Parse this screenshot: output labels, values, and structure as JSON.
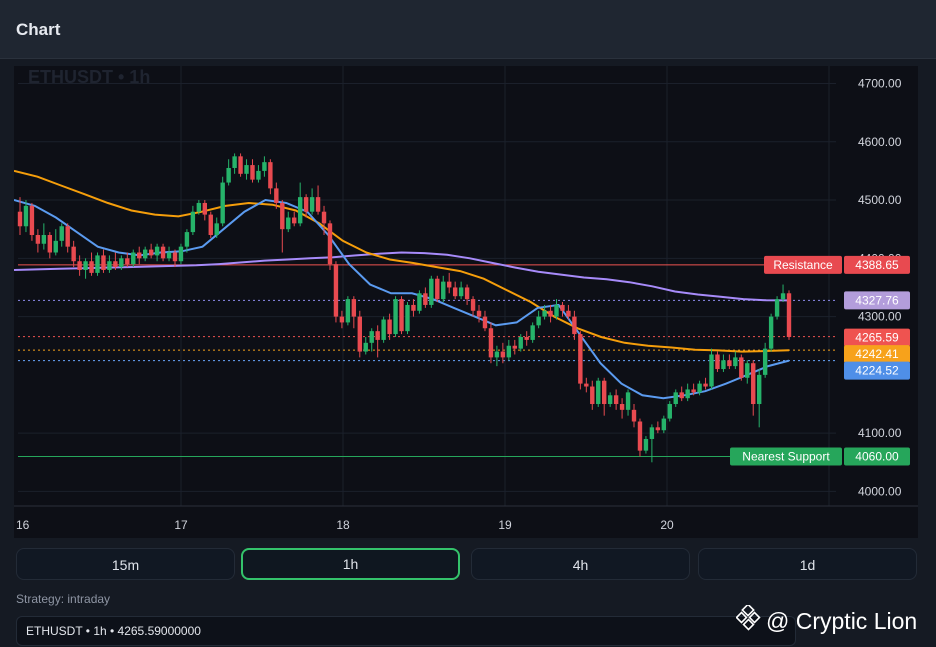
{
  "header": {
    "title": "Chart"
  },
  "symbol_watermark": "ETHUSDT • 1h",
  "chart_data": {
    "type": "candlestick",
    "symbol": "ETHUSDT",
    "interval": "1h",
    "ylim": [
      3975,
      4730
    ],
    "y_ticks": [
      {
        "v": 4700,
        "label": "4700.00"
      },
      {
        "v": 4600,
        "label": "4600.00"
      },
      {
        "v": 4500,
        "label": "4500.00"
      },
      {
        "v": 4400,
        "label": "4400.00"
      },
      {
        "v": 4300,
        "label": "4300.00"
      },
      {
        "v": 4100,
        "label": "4100.00"
      },
      {
        "v": 4000,
        "label": "4000.00"
      }
    ],
    "x_ticks": [
      "16",
      "17",
      "18",
      "19",
      "20"
    ],
    "levels": [
      {
        "name": "Resistance",
        "value": "4388.65",
        "color": "#ef5350",
        "style": "solid"
      },
      {
        "name": "Nearest Support",
        "value": "4060.00",
        "color": "#26a65b",
        "style": "solid"
      }
    ],
    "price_labels": [
      {
        "value": "4327.76",
        "color": "#b39ddb",
        "line": "#8e8cf0"
      },
      {
        "value": "4265.59",
        "color": "#ef5350",
        "line": "#ef5350"
      },
      {
        "value": "4242.41",
        "color": "#f7a21b",
        "line": "#f7a21b"
      },
      {
        "value": "4224.52",
        "color": "#4f8fe8",
        "line": "#6aa8ff"
      }
    ],
    "candles": [
      [
        4480,
        4455,
        4505,
        4440
      ],
      [
        4455,
        4490,
        4500,
        4445
      ],
      [
        4490,
        4440,
        4495,
        4430
      ],
      [
        4440,
        4425,
        4450,
        4410
      ],
      [
        4425,
        4440,
        4460,
        4415
      ],
      [
        4440,
        4410,
        4445,
        4400
      ],
      [
        4410,
        4430,
        4450,
        4405
      ],
      [
        4430,
        4455,
        4460,
        4420
      ],
      [
        4455,
        4420,
        4460,
        4410
      ],
      [
        4420,
        4395,
        4430,
        4385
      ],
      [
        4395,
        4380,
        4405,
        4370
      ],
      [
        4380,
        4395,
        4400,
        4365
      ],
      [
        4395,
        4375,
        4410,
        4370
      ],
      [
        4375,
        4405,
        4410,
        4370
      ],
      [
        4405,
        4380,
        4415,
        4375
      ],
      [
        4380,
        4395,
        4405,
        4375
      ],
      [
        4395,
        4385,
        4410,
        4380
      ],
      [
        4385,
        4400,
        4405,
        4380
      ],
      [
        4400,
        4390,
        4410,
        4385
      ],
      [
        4390,
        4410,
        4415,
        4385
      ],
      [
        4410,
        4400,
        4420,
        4390
      ],
      [
        4400,
        4415,
        4420,
        4395
      ],
      [
        4415,
        4405,
        4425,
        4400
      ],
      [
        4405,
        4420,
        4425,
        4395
      ],
      [
        4420,
        4400,
        4425,
        4395
      ],
      [
        4400,
        4410,
        4420,
        4395
      ],
      [
        4410,
        4395,
        4415,
        4385
      ],
      [
        4395,
        4420,
        4425,
        4390
      ],
      [
        4420,
        4445,
        4450,
        4410
      ],
      [
        4445,
        4480,
        4490,
        4440
      ],
      [
        4480,
        4495,
        4500,
        4475
      ],
      [
        4495,
        4475,
        4500,
        4465
      ],
      [
        4475,
        4440,
        4480,
        4435
      ],
      [
        4440,
        4460,
        4470,
        4435
      ],
      [
        4460,
        4530,
        4540,
        4455
      ],
      [
        4530,
        4555,
        4570,
        4525
      ],
      [
        4555,
        4575,
        4580,
        4545
      ],
      [
        4575,
        4545,
        4580,
        4540
      ],
      [
        4545,
        4560,
        4570,
        4535
      ],
      [
        4560,
        4535,
        4570,
        4530
      ],
      [
        4535,
        4550,
        4560,
        4530
      ],
      [
        4550,
        4565,
        4575,
        4540
      ],
      [
        4565,
        4520,
        4570,
        4510
      ],
      [
        4520,
        4495,
        4530,
        4485
      ],
      [
        4495,
        4450,
        4500,
        4410
      ],
      [
        4450,
        4470,
        4480,
        4445
      ],
      [
        4470,
        4460,
        4480,
        4455
      ],
      [
        4460,
        4505,
        4530,
        4455
      ],
      [
        4505,
        4480,
        4510,
        4470
      ],
      [
        4480,
        4505,
        4520,
        4475
      ],
      [
        4505,
        4480,
        4525,
        4475
      ],
      [
        4480,
        4460,
        4490,
        4440
      ],
      [
        4460,
        4390,
        4465,
        4380
      ],
      [
        4390,
        4300,
        4395,
        4290
      ],
      [
        4300,
        4290,
        4310,
        4280
      ],
      [
        4290,
        4330,
        4335,
        4285
      ],
      [
        4330,
        4300,
        4335,
        4280
      ],
      [
        4300,
        4240,
        4310,
        4230
      ],
      [
        4240,
        4255,
        4265,
        4235
      ],
      [
        4255,
        4275,
        4280,
        4240
      ],
      [
        4275,
        4260,
        4285,
        4230
      ],
      [
        4260,
        4295,
        4300,
        4255
      ],
      [
        4295,
        4270,
        4305,
        4260
      ],
      [
        4270,
        4330,
        4335,
        4265
      ],
      [
        4330,
        4275,
        4335,
        4270
      ],
      [
        4275,
        4320,
        4325,
        4270
      ],
      [
        4320,
        4310,
        4330,
        4300
      ],
      [
        4310,
        4340,
        4345,
        4305
      ],
      [
        4340,
        4320,
        4350,
        4315
      ],
      [
        4320,
        4365,
        4370,
        4315
      ],
      [
        4365,
        4330,
        4370,
        4325
      ],
      [
        4330,
        4360,
        4370,
        4325
      ],
      [
        4360,
        4350,
        4375,
        4340
      ],
      [
        4350,
        4335,
        4360,
        4330
      ],
      [
        4335,
        4350,
        4360,
        4330
      ],
      [
        4350,
        4330,
        4355,
        4320
      ],
      [
        4330,
        4310,
        4335,
        4300
      ],
      [
        4310,
        4300,
        4320,
        4290
      ],
      [
        4300,
        4280,
        4310,
        4275
      ],
      [
        4280,
        4230,
        4290,
        4220
      ],
      [
        4230,
        4240,
        4250,
        4215
      ],
      [
        4240,
        4230,
        4255,
        4220
      ],
      [
        4230,
        4250,
        4260,
        4225
      ],
      [
        4250,
        4245,
        4260,
        4235
      ],
      [
        4245,
        4265,
        4270,
        4240
      ],
      [
        4265,
        4260,
        4275,
        4250
      ],
      [
        4260,
        4285,
        4290,
        4255
      ],
      [
        4285,
        4300,
        4310,
        4280
      ],
      [
        4300,
        4310,
        4320,
        4295
      ],
      [
        4310,
        4300,
        4320,
        4290
      ],
      [
        4300,
        4320,
        4330,
        4295
      ],
      [
        4320,
        4310,
        4325,
        4300
      ],
      [
        4310,
        4300,
        4320,
        4295
      ],
      [
        4300,
        4270,
        4310,
        4260
      ],
      [
        4270,
        4185,
        4275,
        4175
      ],
      [
        4185,
        4180,
        4195,
        4170
      ],
      [
        4180,
        4150,
        4190,
        4140
      ],
      [
        4150,
        4190,
        4195,
        4145
      ],
      [
        4190,
        4150,
        4195,
        4130
      ],
      [
        4150,
        4165,
        4170,
        4145
      ],
      [
        4165,
        4150,
        4175,
        4140
      ],
      [
        4150,
        4140,
        4160,
        4125
      ],
      [
        4140,
        4170,
        4175,
        4130
      ],
      [
        4140,
        4120,
        4150,
        4110
      ],
      [
        4120,
        4070,
        4125,
        4060
      ],
      [
        4070,
        4090,
        4095,
        4065
      ],
      [
        4090,
        4110,
        4115,
        4050
      ],
      [
        4110,
        4105,
        4120,
        4100
      ],
      [
        4105,
        4125,
        4130,
        4100
      ],
      [
        4125,
        4150,
        4155,
        4120
      ],
      [
        4150,
        4170,
        4175,
        4145
      ],
      [
        4170,
        4160,
        4180,
        4155
      ],
      [
        4160,
        4175,
        4185,
        4155
      ],
      [
        4175,
        4170,
        4185,
        4165
      ],
      [
        4170,
        4185,
        4190,
        4165
      ],
      [
        4185,
        4180,
        4195,
        4175
      ],
      [
        4180,
        4235,
        4245,
        4175
      ],
      [
        4235,
        4210,
        4240,
        4205
      ],
      [
        4210,
        4225,
        4235,
        4205
      ],
      [
        4225,
        4215,
        4235,
        4210
      ],
      [
        4215,
        4230,
        4240,
        4210
      ],
      [
        4230,
        4195,
        4235,
        4190
      ],
      [
        4195,
        4220,
        4225,
        4185
      ],
      [
        4220,
        4150,
        4225,
        4130
      ],
      [
        4150,
        4200,
        4210,
        4110
      ],
      [
        4200,
        4245,
        4255,
        4195
      ],
      [
        4245,
        4300,
        4305,
        4240
      ],
      [
        4300,
        4330,
        4335,
        4295
      ],
      [
        4330,
        4340,
        4355,
        4325
      ],
      [
        4340,
        4265,
        4345,
        4260
      ]
    ],
    "ma_purple": [
      4380,
      4381,
      4382,
      4383,
      4384,
      4385,
      4386,
      4387,
      4388,
      4390,
      4393,
      4396,
      4398,
      4400,
      4402,
      4405,
      4408,
      4410,
      4409,
      4406,
      4400,
      4392,
      4384,
      4377,
      4372,
      4367,
      4364,
      4359,
      4352,
      4343,
      4338,
      4334,
      4330,
      4328,
      4327.76
    ],
    "ma_orange": [
      4550,
      4540,
      4525,
      4510,
      4495,
      4482,
      4475,
      4472,
      4480,
      4490,
      4495,
      4492,
      4482,
      4460,
      4430,
      4410,
      4398,
      4392,
      4385,
      4378,
      4365,
      4345,
      4325,
      4300,
      4280,
      4265,
      4255,
      4250,
      4247,
      4243,
      4242,
      4240,
      4241,
      4242.41
    ],
    "ma_blue": [
      4500,
      4490,
      4470,
      4445,
      4420,
      4410,
      4405,
      4410,
      4412,
      4420,
      4450,
      4480,
      4500,
      4495,
      4480,
      4440,
      4390,
      4355,
      4340,
      4340,
      4330,
      4315,
      4300,
      4285,
      4290,
      4315,
      4320,
      4270,
      4220,
      4185,
      4165,
      4160,
      4165,
      4172,
      4185,
      4200,
      4215,
      4224.52
    ]
  },
  "timeframes": [
    {
      "label": "15m",
      "active": false
    },
    {
      "label": "1h",
      "active": true
    },
    {
      "label": "4h",
      "active": false
    },
    {
      "label": "1d",
      "active": false
    }
  ],
  "strategy_text": "Strategy: intraday",
  "info_bar_text": "ETHUSDT • 1h • 4265.59000000",
  "watermark_text": "@ Cryptic Lion"
}
